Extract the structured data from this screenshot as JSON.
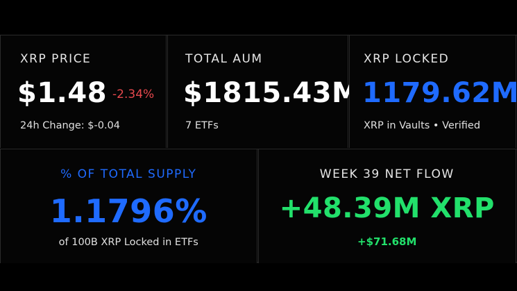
{
  "colors": {
    "background": "#000000",
    "negative": "#e5484d",
    "accent_blue": "#1f6bff",
    "positive_green": "#22e06b"
  },
  "cards": {
    "xrp_price": {
      "label": "XRP PRICE",
      "value": "$1.48",
      "change_pct": "-2.34%",
      "sub": "24h Change: $-0.04"
    },
    "total_aum": {
      "label": "TOTAL AUM",
      "value": "$1815.43M",
      "sub": "7 ETFs"
    },
    "xrp_locked": {
      "label": "XRP LOCKED",
      "value": "1179.62M",
      "sub": "XRP in Vaults • Verified"
    },
    "supply_pct": {
      "label": "% OF TOTAL SUPPLY",
      "value": "1.1796%",
      "sub": "of 100B XRP Locked in ETFs"
    },
    "net_flow": {
      "label": "WEEK 39 NET FLOW",
      "value": "+48.39M XRP",
      "sub": "+$71.68M"
    }
  }
}
